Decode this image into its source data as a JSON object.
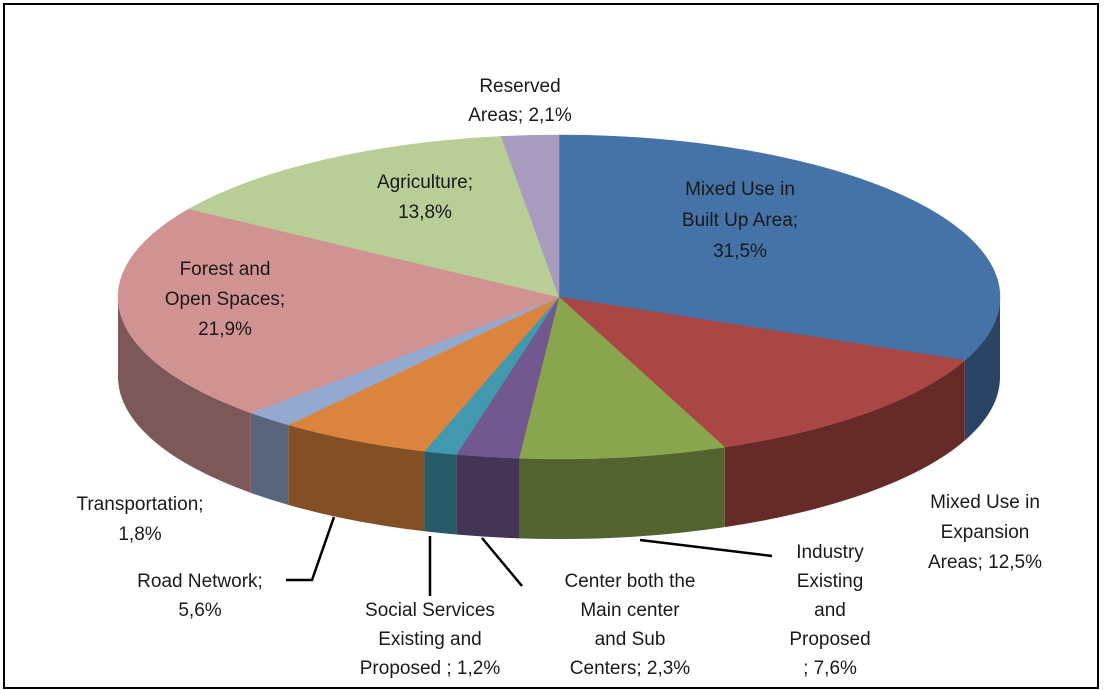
{
  "chart_data": {
    "type": "pie3d",
    "values": [
      31.5,
      12.5,
      7.6,
      2.3,
      1.2,
      5.6,
      1.8,
      21.9,
      13.8,
      2.1
    ],
    "value_labels": [
      [
        "Mixed Use in",
        "Built Up Area;",
        "31,5%"
      ],
      [
        "Mixed Use in",
        "Expansion",
        "Areas; 12,5%"
      ],
      [
        "Industry",
        "Existing",
        "and",
        "Proposed",
        "; 7,6%"
      ],
      [
        "Center both the",
        "Main center",
        "and Sub",
        "Centers; 2,3%"
      ],
      [
        "Social Services",
        "Existing and",
        "Proposed ; 1,2%"
      ],
      [
        "Road Network;",
        "5,6%"
      ],
      [
        "Transportation;",
        "1,8%"
      ],
      [
        "Forest and",
        "Open Spaces;",
        "21,9%"
      ],
      [
        "Agriculture;",
        "13,8%"
      ],
      [
        "Reserved",
        "Areas; 2,1%"
      ]
    ],
    "colors": [
      "#4572a7",
      "#aa4643",
      "#89a54e",
      "#71588f",
      "#4198af",
      "#db843d",
      "#93a9cf",
      "#d19392",
      "#b9cd96",
      "#a99bbd"
    ]
  }
}
